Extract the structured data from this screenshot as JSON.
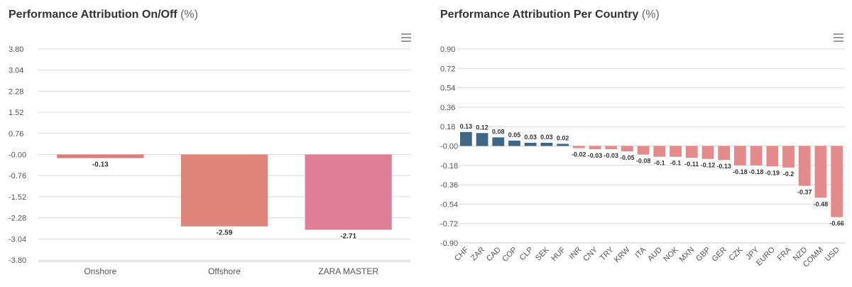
{
  "left_panel": {
    "title": "Performance Attribution On/Off",
    "title_unit": "(%)",
    "menu_icon": "hamburger-menu-icon"
  },
  "right_panel": {
    "title": "Performance Attribution Per Country",
    "title_unit": "(%)",
    "menu_icon": "hamburger-menu-icon"
  },
  "chart_data": [
    {
      "type": "bar",
      "title": "Performance Attribution On/Off (%)",
      "categories": [
        "Onshore",
        "Offshore",
        "ZARA MASTER"
      ],
      "values": [
        -0.13,
        -2.59,
        -2.71
      ],
      "value_labels": [
        "-0.13",
        "-2.59",
        "-2.71"
      ],
      "colors": [
        "#e07b78",
        "#df8478",
        "#df7e96"
      ],
      "y_ticks": [
        "3.80",
        "3.04",
        "2.28",
        "1.52",
        "0.76",
        "-0.00",
        "-0.76",
        "-1.52",
        "-2.28",
        "-3.04",
        "-3.80"
      ],
      "ylim": [
        -3.8,
        3.8
      ],
      "xlabel": "",
      "ylabel": "",
      "grid": true,
      "legend": "none"
    },
    {
      "type": "bar",
      "title": "Performance Attribution Per Country (%)",
      "categories": [
        "CHF",
        "ZAR",
        "CAD",
        "COP",
        "CLP",
        "SEK",
        "HUF",
        "INR",
        "CNY",
        "TRY",
        "KRW",
        "ITA",
        "AUD",
        "NOK",
        "MXN",
        "GBP",
        "GER",
        "CZK",
        "JPY",
        "EURO",
        "FRA",
        "NZD",
        "COMM",
        "USD"
      ],
      "values": [
        0.13,
        0.12,
        0.08,
        0.05,
        0.03,
        0.03,
        0.02,
        -0.02,
        -0.03,
        -0.03,
        -0.05,
        -0.08,
        -0.1,
        -0.1,
        -0.11,
        -0.12,
        -0.13,
        -0.18,
        -0.18,
        -0.19,
        -0.2,
        -0.37,
        -0.48,
        -0.66
      ],
      "value_labels": [
        "0.13",
        "0.12",
        "0.08",
        "0.05",
        "0.03",
        "0.03",
        "0.02",
        "-0.02",
        "-0.03",
        "-0.03",
        "-0.05",
        "-0.08",
        "-0.1",
        "-0.1",
        "-0.11",
        "-0.12",
        "-0.13",
        "-0.18",
        "-0.18",
        "-0.19",
        "-0.2",
        "-0.37",
        "-0.48",
        "-0.66"
      ],
      "positive_color": "#3f6685",
      "negative_color": "#e58a8a",
      "y_ticks": [
        "0.90",
        "0.72",
        "0.54",
        "0.36",
        "0.18",
        "-0.00",
        "-0.18",
        "-0.36",
        "-0.54",
        "-0.72",
        "-0.90"
      ],
      "ylim": [
        -0.9,
        0.9
      ],
      "xlabel": "",
      "ylabel": "",
      "grid": true,
      "legend": "none"
    }
  ]
}
